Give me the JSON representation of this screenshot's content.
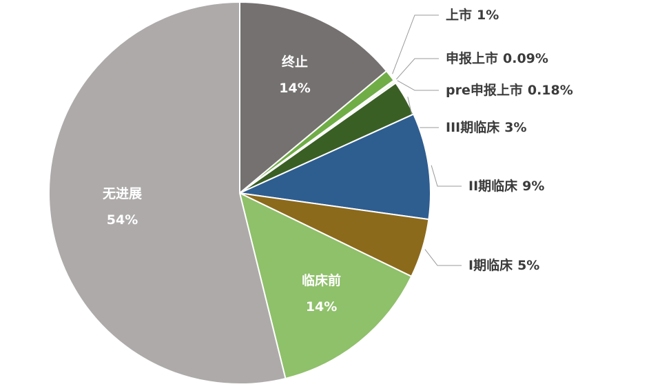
{
  "chart_data": {
    "type": "pie",
    "categories": [
      "终止",
      "上市",
      "申报上市",
      "pre申报上市",
      "III期临床",
      "II期临床",
      "I期临床",
      "临床前",
      "无进展"
    ],
    "values": [
      14,
      1,
      0.09,
      0.18,
      3,
      9,
      5,
      14,
      54
    ],
    "value_labels": [
      "14%",
      "1%",
      "0.09%",
      "0.18%",
      "3%",
      "9%",
      "5%",
      "14%",
      "54%"
    ],
    "colors": [
      "#767171",
      "#70ad47",
      "#a9d18e",
      "#e2efda",
      "#3a5f25",
      "#2e5d90",
      "#8c6a1c",
      "#8fc06a",
      "#aeaaaa"
    ]
  }
}
